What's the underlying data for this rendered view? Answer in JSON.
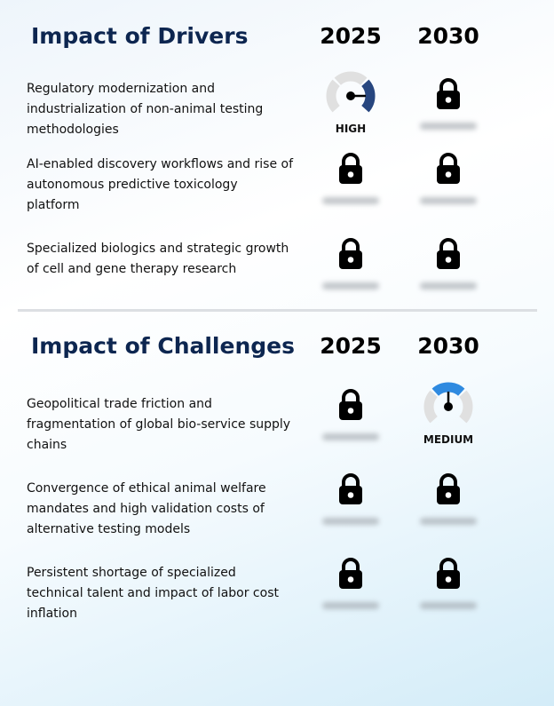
{
  "sections": [
    {
      "title": "Impact of Drivers",
      "years": [
        "2025",
        "2030"
      ],
      "rows": [
        {
          "text": "Regulatory modernization and industrialization of non-animal testing methodologies",
          "cells": [
            {
              "type": "gauge",
              "level": "HIGH",
              "color": "#27467f"
            },
            {
              "type": "locked"
            }
          ]
        },
        {
          "text": "AI-enabled discovery workflows and rise of autonomous predictive toxicology platform",
          "cells": [
            {
              "type": "locked"
            },
            {
              "type": "locked"
            }
          ]
        },
        {
          "text": "Specialized biologics and strategic growth of cell and gene therapy research",
          "cells": [
            {
              "type": "locked"
            },
            {
              "type": "locked"
            }
          ]
        }
      ]
    },
    {
      "title": "Impact of Challenges",
      "years": [
        "2025",
        "2030"
      ],
      "rows": [
        {
          "text": "Geopolitical trade friction and fragmentation of global bio-service supply chains",
          "cells": [
            {
              "type": "locked"
            },
            {
              "type": "gauge",
              "level": "MEDIUM",
              "color": "#2f8ae0"
            }
          ]
        },
        {
          "text": "Convergence of ethical animal welfare mandates and high validation costs of alternative testing models",
          "cells": [
            {
              "type": "locked"
            },
            {
              "type": "locked"
            }
          ]
        },
        {
          "text": "Persistent shortage of specialized technical talent and impact of labor cost inflation",
          "cells": [
            {
              "type": "locked"
            },
            {
              "type": "locked"
            }
          ]
        }
      ]
    }
  ]
}
